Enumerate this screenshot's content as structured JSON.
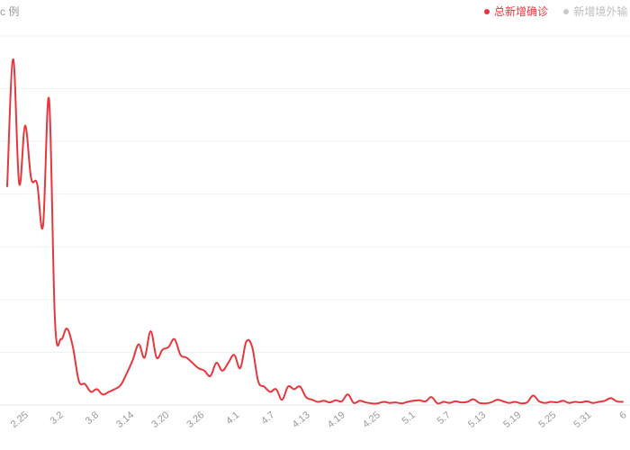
{
  "chart_data": {
    "type": "line",
    "unit_label": "c 例",
    "legend": [
      {
        "name": "总新增确诊",
        "color": "#e8363d",
        "active": true
      },
      {
        "name": "新增境外输",
        "color": "#c8c8c8",
        "active": false
      }
    ],
    "x_ticks": [
      "2.25",
      "3.2",
      "3.8",
      "3.14",
      "3.20",
      "3.26",
      "4.1",
      "4.7",
      "4.13",
      "4.19",
      "4.25",
      "5.1",
      "5.7",
      "5.13",
      "5.19",
      "5.25",
      "5.31",
      "6"
    ],
    "ylim": [
      0,
      7000
    ],
    "grid": true,
    "series": [
      {
        "name": "总新增确诊",
        "color": "#e8363d",
        "x": [
          "2.20",
          "2.21",
          "2.22",
          "2.23",
          "2.24",
          "2.25",
          "2.26",
          "2.27",
          "2.28",
          "2.29",
          "3.1",
          "3.2",
          "3.3",
          "3.4",
          "3.5",
          "3.6",
          "3.7",
          "3.8",
          "3.9",
          "3.10",
          "3.11",
          "3.12",
          "3.13",
          "3.14",
          "3.15",
          "3.16",
          "3.17",
          "3.18",
          "3.19",
          "3.20",
          "3.21",
          "3.22",
          "3.23",
          "3.24",
          "3.25",
          "3.26",
          "3.27",
          "3.28",
          "3.29",
          "3.30",
          "3.31",
          "4.1",
          "4.2",
          "4.3",
          "4.4",
          "4.5",
          "4.6",
          "4.7",
          "4.8",
          "4.9",
          "4.10",
          "4.11",
          "4.12",
          "4.13",
          "4.14",
          "4.15",
          "4.16",
          "4.17",
          "4.18",
          "4.19",
          "4.20",
          "4.21",
          "4.22",
          "4.23",
          "4.24",
          "4.25",
          "4.26",
          "4.27",
          "4.28",
          "4.29",
          "4.30",
          "5.1",
          "5.2",
          "5.3",
          "5.4",
          "5.5",
          "5.6",
          "5.7",
          "5.8",
          "5.9",
          "5.10",
          "5.11",
          "5.12",
          "5.13",
          "5.14",
          "5.15",
          "5.16",
          "5.17",
          "5.18",
          "5.19",
          "5.20",
          "5.21",
          "5.22",
          "5.23",
          "5.24",
          "5.25",
          "5.26",
          "5.27",
          "5.28",
          "5.29",
          "5.30",
          "5.31",
          "6.1",
          "6.2"
        ],
        "values": [
          4150,
          6560,
          4200,
          5300,
          4300,
          4200,
          3400,
          5800,
          1600,
          1250,
          1450,
          1100,
          450,
          400,
          250,
          300,
          200,
          250,
          300,
          380,
          600,
          850,
          1150,
          900,
          1400,
          900,
          1050,
          1100,
          1250,
          950,
          900,
          800,
          700,
          650,
          550,
          800,
          650,
          800,
          950,
          700,
          1200,
          1100,
          450,
          350,
          250,
          300,
          100,
          350,
          300,
          350,
          150,
          100,
          60,
          80,
          50,
          90,
          70,
          200,
          40,
          80,
          50,
          30,
          30,
          60,
          40,
          50,
          30,
          60,
          80,
          90,
          70,
          150,
          30,
          60,
          40,
          70,
          50,
          60,
          110,
          40,
          30,
          50,
          100,
          70,
          40,
          60,
          30,
          50,
          180,
          70,
          40,
          60,
          50,
          80,
          40,
          60,
          50,
          70,
          40,
          60,
          80,
          130,
          70,
          60
        ]
      }
    ]
  }
}
